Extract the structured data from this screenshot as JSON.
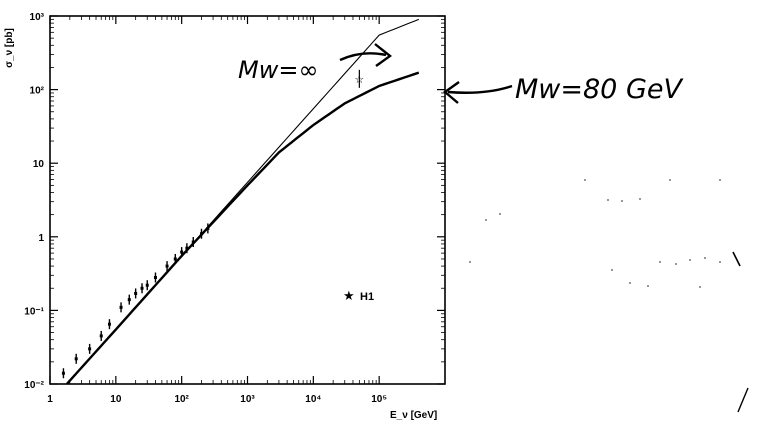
{
  "chart_data": {
    "type": "line",
    "x_scale": "log",
    "y_scale": "log",
    "xlim": [
      1,
      1000000
    ],
    "ylim": [
      0.01,
      1000
    ],
    "xlabel": "E_ν [GeV]",
    "ylabel": "σ_ν [pb]",
    "x_ticks": [
      {
        "value": 1,
        "label": "1"
      },
      {
        "value": 10,
        "label": "10"
      },
      {
        "value": 100,
        "label": "10²"
      },
      {
        "value": 1000,
        "label": "10³"
      },
      {
        "value": 10000,
        "label": "10⁴"
      },
      {
        "value": 100000,
        "label": "10⁵"
      }
    ],
    "y_ticks": [
      {
        "value": 0.01,
        "label": "10⁻²"
      },
      {
        "value": 0.1,
        "label": "10⁻¹"
      },
      {
        "value": 1,
        "label": "1"
      },
      {
        "value": 10,
        "label": "10"
      },
      {
        "value": 100,
        "label": "10²"
      },
      {
        "value": 1000,
        "label": "10³"
      }
    ],
    "series": [
      {
        "name": "Mw=∞",
        "style": "thin",
        "x": [
          1.8,
          10,
          100,
          1000,
          10000,
          100000,
          400000
        ],
        "y": [
          0.01,
          0.055,
          0.55,
          5.5,
          55,
          550,
          900
        ]
      },
      {
        "name": "Mw=80 GeV",
        "style": "thick",
        "x": [
          1.8,
          10,
          100,
          1000,
          3000,
          10000,
          30000,
          100000,
          400000
        ],
        "y": [
          0.01,
          0.055,
          0.55,
          5.0,
          14,
          33,
          65,
          112,
          170
        ]
      }
    ],
    "data_points": [
      {
        "x": 1.6,
        "y": 0.014
      },
      {
        "x": 2.5,
        "y": 0.022
      },
      {
        "x": 4,
        "y": 0.03
      },
      {
        "x": 6,
        "y": 0.045
      },
      {
        "x": 8,
        "y": 0.065
      },
      {
        "x": 12,
        "y": 0.11
      },
      {
        "x": 16,
        "y": 0.14
      },
      {
        "x": 20,
        "y": 0.17
      },
      {
        "x": 25,
        "y": 0.2
      },
      {
        "x": 30,
        "y": 0.22
      },
      {
        "x": 40,
        "y": 0.28
      },
      {
        "x": 60,
        "y": 0.4
      },
      {
        "x": 80,
        "y": 0.5
      },
      {
        "x": 100,
        "y": 0.62
      },
      {
        "x": 120,
        "y": 0.7
      },
      {
        "x": 150,
        "y": 0.85
      },
      {
        "x": 200,
        "y": 1.1
      },
      {
        "x": 250,
        "y": 1.3
      }
    ],
    "h1_point": {
      "x": 50000,
      "y": 140
    },
    "legend": {
      "label": "H1",
      "marker": "star"
    },
    "annotations": [
      {
        "text": "Mw=∞"
      },
      {
        "text": "Mw=80 GeV"
      }
    ],
    "grid": false
  }
}
